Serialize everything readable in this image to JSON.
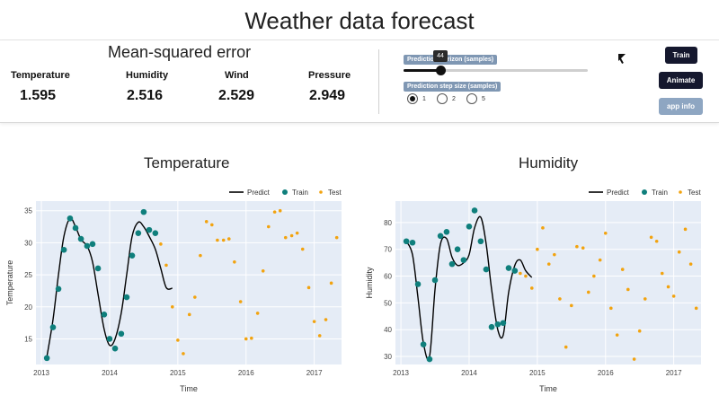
{
  "page": {
    "title": "Weather data forecast"
  },
  "metrics": {
    "title": "Mean-squared error",
    "items": [
      {
        "label": "Temperature",
        "value": "1.595"
      },
      {
        "label": "Humidity",
        "value": "2.516"
      },
      {
        "label": "Wind",
        "value": "2.529"
      },
      {
        "label": "Pressure",
        "value": "2.949"
      }
    ]
  },
  "controls": {
    "horizon_label": "Prediction horizon (samples)",
    "horizon_value": "44",
    "horizon_fraction": 0.2,
    "step_label": "Prediction step size (samples)",
    "step_options": [
      "1",
      "2",
      "5"
    ],
    "step_selected": "1"
  },
  "buttons": {
    "train": "Train",
    "animate": "Animate",
    "info": "app info"
  },
  "colors": {
    "predict": "#000000",
    "train": "#0f7f7c",
    "test": "#f2a30f",
    "plot_bg": "#e5ecf6",
    "accent_dark": "#15182e",
    "accent_light": "#8ea6c2"
  },
  "chart_data": [
    {
      "type": "line",
      "title": "Temperature",
      "xlabel": "Time",
      "ylabel": "Temperature",
      "xlim": [
        2012.92,
        2017.4
      ],
      "ylim": [
        11,
        36.5
      ],
      "xticks": [
        "2013",
        "2014",
        "2015",
        "2016",
        "2017"
      ],
      "yticks": [
        15,
        20,
        25,
        30,
        35
      ],
      "grid": true,
      "legend": {
        "placement": "top-right",
        "entries": [
          "Predict",
          "Train",
          "Test"
        ]
      },
      "series": [
        {
          "name": "Predict",
          "mode": "line",
          "x": [
            2013.08,
            2013.17,
            2013.25,
            2013.33,
            2013.42,
            2013.5,
            2013.58,
            2013.67,
            2013.75,
            2013.83,
            2013.92,
            2014.0,
            2014.08,
            2014.17,
            2014.25,
            2014.33,
            2014.42,
            2014.5,
            2014.58,
            2014.67,
            2014.75,
            2014.83,
            2014.92
          ],
          "y": [
            12.2,
            18,
            25,
            31,
            33.8,
            32.5,
            30.5,
            29.5,
            27,
            22,
            16.5,
            14,
            15,
            19,
            25,
            31,
            33.2,
            32.5,
            31,
            29,
            26,
            23,
            22.9
          ]
        },
        {
          "name": "Train",
          "mode": "markers",
          "x": [
            2013.08,
            2013.17,
            2013.25,
            2013.33,
            2013.42,
            2013.5,
            2013.58,
            2013.67,
            2013.75,
            2013.83,
            2013.92,
            2014.0,
            2014.08,
            2014.17,
            2014.25,
            2014.33,
            2014.42,
            2014.5,
            2014.58,
            2014.67
          ],
          "y": [
            12,
            16.8,
            22.8,
            28.9,
            33.8,
            32.3,
            30.6,
            29.5,
            29.8,
            26,
            18.8,
            15,
            13.5,
            15.8,
            21.5,
            28,
            31.5,
            34.8,
            32,
            31.5
          ]
        },
        {
          "name": "Test",
          "mode": "markers",
          "x": [
            2014.75,
            2014.83,
            2014.92,
            2015.0,
            2015.08,
            2015.17,
            2015.25,
            2015.33,
            2015.42,
            2015.5,
            2015.58,
            2015.67,
            2015.75,
            2015.83,
            2015.92,
            2016.0,
            2016.08,
            2016.17,
            2016.25,
            2016.33,
            2016.42,
            2016.5,
            2016.58,
            2016.67,
            2016.75,
            2016.83,
            2016.92,
            2017.0,
            2017.08,
            2017.17,
            2017.25,
            2017.33
          ],
          "y": [
            29.8,
            26.5,
            20,
            14.8,
            12.7,
            18.8,
            21.5,
            28,
            33.3,
            32.8,
            30.4,
            30.4,
            30.6,
            27,
            20.8,
            15,
            15.1,
            19,
            25.6,
            32.5,
            34.8,
            35,
            30.8,
            31.1,
            31.5,
            29,
            23,
            17.7,
            15.5,
            18,
            23.7,
            30.8
          ]
        }
      ]
    },
    {
      "type": "line",
      "title": "Humidity",
      "xlabel": "Time",
      "ylabel": "Humidity",
      "xlim": [
        2012.92,
        2017.4
      ],
      "ylim": [
        27,
        88
      ],
      "xticks": [
        "2013",
        "2014",
        "2015",
        "2016",
        "2017"
      ],
      "yticks": [
        30,
        40,
        50,
        60,
        70,
        80
      ],
      "grid": true,
      "legend": {
        "placement": "top-right",
        "entries": [
          "Predict",
          "Train",
          "Test"
        ]
      },
      "series": [
        {
          "name": "Predict",
          "mode": "line",
          "x": [
            2013.08,
            2013.17,
            2013.25,
            2013.33,
            2013.42,
            2013.5,
            2013.58,
            2013.67,
            2013.75,
            2013.83,
            2013.92,
            2014.0,
            2014.08,
            2014.17,
            2014.25,
            2014.33,
            2014.42,
            2014.5,
            2014.58,
            2014.67,
            2014.75,
            2014.83,
            2014.92
          ],
          "y": [
            73,
            68,
            52,
            35,
            30,
            55,
            72,
            74,
            67,
            64,
            65,
            68,
            78,
            82,
            72,
            55,
            40,
            38,
            54,
            64,
            66,
            62,
            59.5
          ]
        },
        {
          "name": "Train",
          "mode": "markers",
          "x": [
            2013.08,
            2013.17,
            2013.25,
            2013.33,
            2013.42,
            2013.5,
            2013.58,
            2013.67,
            2013.75,
            2013.83,
            2013.92,
            2014.0,
            2014.08,
            2014.17,
            2014.25,
            2014.33,
            2014.42,
            2014.5,
            2014.58,
            2014.67
          ],
          "y": [
            73,
            72.5,
            57,
            34.5,
            29,
            58.5,
            75,
            76.5,
            64.5,
            70,
            66,
            78.5,
            84.5,
            73,
            62.5,
            41,
            42,
            42.5,
            63,
            62
          ]
        },
        {
          "name": "Test",
          "mode": "markers",
          "x": [
            2014.75,
            2014.83,
            2014.92,
            2015.0,
            2015.08,
            2015.17,
            2015.25,
            2015.33,
            2015.42,
            2015.5,
            2015.58,
            2015.67,
            2015.75,
            2015.83,
            2015.92,
            2016.0,
            2016.08,
            2016.17,
            2016.25,
            2016.33,
            2016.42,
            2016.5,
            2016.58,
            2016.67,
            2016.75,
            2016.83,
            2016.92,
            2017.0,
            2017.08,
            2017.17,
            2017.25,
            2017.33
          ],
          "y": [
            61,
            60,
            55.5,
            70,
            78,
            64.5,
            68,
            51.5,
            33.5,
            49,
            71,
            70.5,
            54,
            60,
            66,
            76,
            48,
            38,
            62.5,
            55,
            29,
            39.5,
            51.5,
            74.5,
            73,
            61,
            56,
            52.5,
            69,
            77.5,
            64.5,
            48
          ]
        }
      ]
    }
  ]
}
